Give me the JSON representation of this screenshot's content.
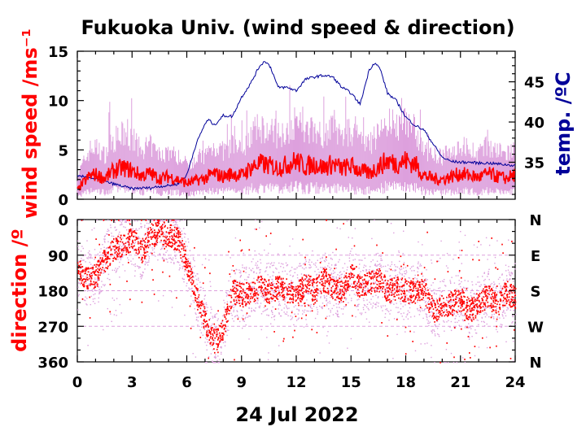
{
  "chart_data": [
    {
      "type": "line",
      "title": "Fukuoka Univ. (wind speed & direction)",
      "xlabel": "24 Jul 2022",
      "ylabel": "wind speed /ms⁻¹",
      "y2label": "temp. /ºC",
      "x_ticks": [
        "0",
        "3",
        "6",
        "9",
        "12",
        "15",
        "18",
        "21",
        "24"
      ],
      "xlim": [
        0,
        24
      ],
      "ylim": [
        0,
        15
      ],
      "y_ticks": [
        "0",
        "5",
        "10",
        "15"
      ],
      "y2lim": [
        30.4,
        48.8
      ],
      "y2_ticks": [
        "35",
        "40",
        "45"
      ],
      "colors": {
        "speed_mean": "#ff0000",
        "speed_gust": "#dda0dd",
        "temperature": "#000099"
      },
      "series": [
        {
          "type": "line",
          "x": [
            0,
            0.3,
            0.7,
            1,
            1.5,
            2,
            2.5,
            3,
            3.5,
            4,
            4.5,
            5,
            5.5,
            6,
            6.5,
            7,
            7.5,
            8,
            8.5,
            9,
            9.5,
            10,
            10.5,
            11,
            11.5,
            12,
            12.5,
            13,
            13.5,
            14,
            14.5,
            15,
            15.5,
            16,
            16.5,
            17,
            17.5,
            18,
            18.5,
            19,
            19.5,
            20,
            20.5,
            21,
            21.5,
            22,
            22.5,
            23,
            23.5,
            24
          ],
          "values": [
            0.9,
            1.6,
            2.4,
            2.5,
            2.1,
            2.9,
            3.2,
            2.9,
            2.4,
            2.6,
            2.1,
            2.3,
            2.0,
            1.6,
            1.9,
            2.1,
            2.6,
            2.3,
            2.6,
            2.4,
            3.2,
            3.6,
            3.4,
            3.2,
            3.5,
            3.9,
            3.3,
            3.6,
            3.2,
            3.6,
            3.1,
            3.4,
            2.9,
            2.6,
            3.3,
            3.9,
            3.6,
            3.9,
            3.6,
            2.4,
            2.1,
            2.0,
            2.3,
            2.6,
            2.4,
            2.2,
            2.6,
            2.3,
            2.1,
            2.5
          ]
        },
        {
          "type": "line",
          "x": [
            0,
            0.5,
            1,
            1.5,
            2,
            2.5,
            3,
            3.5,
            4,
            4.5,
            5,
            5.5,
            6,
            6.5,
            7,
            7.2,
            7.5,
            8,
            8.5,
            9,
            9.5,
            10,
            10.3,
            10.6,
            11,
            11.5,
            12,
            12.5,
            13,
            13.5,
            14,
            14.5,
            15,
            15.5,
            16,
            16.3,
            16.6,
            17,
            17.5,
            18,
            18.5,
            19,
            19.5,
            20,
            20.5,
            21,
            21.5,
            22,
            22.5,
            23,
            23.5,
            24
          ],
          "values": [
            33.2,
            33.2,
            32.9,
            32.6,
            32.3,
            32.0,
            31.7,
            31.8,
            31.8,
            32.0,
            32.1,
            32.3,
            33.4,
            37.2,
            39.8,
            40.3,
            39.6,
            40.8,
            40.7,
            43.1,
            44.8,
            47.0,
            47.6,
            46.8,
            44.3,
            44.3,
            43.9,
            45.3,
            45.6,
            45.8,
            45.6,
            44.3,
            43.6,
            42.2,
            46.5,
            47.4,
            46.6,
            43.6,
            42.6,
            40.6,
            39.6,
            39.0,
            37.3,
            35.6,
            35.1,
            35.0,
            35.0,
            34.9,
            34.9,
            34.8,
            34.7,
            34.6
          ]
        }
      ]
    },
    {
      "type": "scatter",
      "xlabel": "24 Jul 2022",
      "ylabel": "direction /º",
      "x_ticks": [
        "0",
        "3",
        "6",
        "9",
        "12",
        "15",
        "18",
        "21",
        "24"
      ],
      "xlim": [
        0,
        24
      ],
      "ylim": [
        0,
        360
      ],
      "y_ticks": [
        "0",
        "90",
        "180",
        "270",
        "360"
      ],
      "y2_ticks": [
        "N",
        "E",
        "S",
        "W",
        "N"
      ],
      "colors": {
        "direction": "#ff0000",
        "direction_spread": "#dda0dd"
      },
      "series": [
        {
          "type": "scatter",
          "x": [
            0,
            0.5,
            1,
            1.5,
            2,
            2.5,
            3,
            3.5,
            4,
            4.5,
            5,
            5.5,
            6,
            6.5,
            7,
            7.5,
            8,
            8.5,
            9,
            9.5,
            10,
            10.5,
            11,
            11.5,
            12,
            12.5,
            13,
            13.5,
            14,
            14.5,
            15,
            15.5,
            16,
            16.5,
            17,
            17.5,
            18,
            18.5,
            19,
            19.5,
            20,
            20.5,
            21,
            21.5,
            22,
            22.5,
            23,
            23.5,
            24
          ],
          "values": [
            120,
            150,
            140,
            100,
            70,
            60,
            50,
            80,
            40,
            30,
            40,
            50,
            110,
            190,
            260,
            310,
            270,
            180,
            190,
            180,
            170,
            180,
            170,
            180,
            190,
            160,
            180,
            150,
            170,
            180,
            140,
            170,
            160,
            150,
            180,
            170,
            180,
            180,
            180,
            230,
            220,
            210,
            200,
            230,
            210,
            190,
            220,
            180,
            200
          ]
        }
      ]
    }
  ]
}
